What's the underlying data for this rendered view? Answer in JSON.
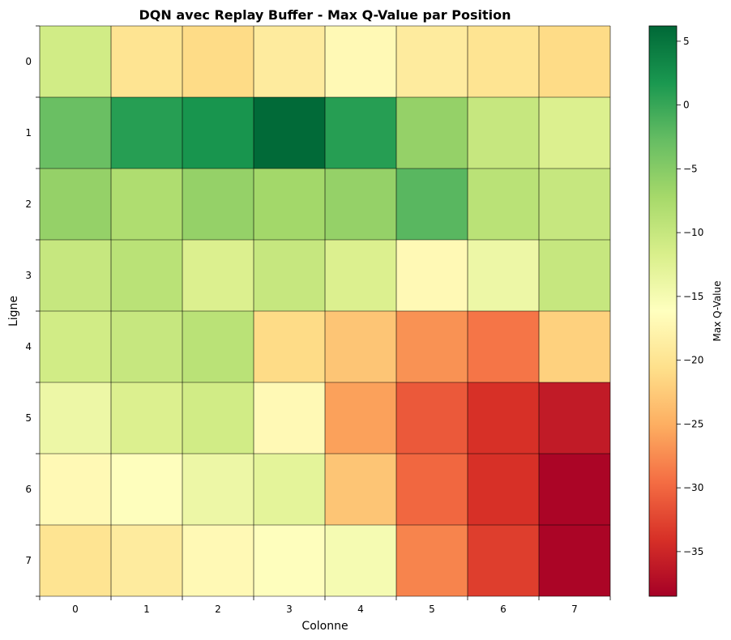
{
  "chart_data": {
    "type": "heatmap",
    "title": "DQN avec Replay Buffer - Max Q-Value par Position",
    "xlabel": "Colonne",
    "ylabel": "Ligne",
    "x_ticks": [
      "0",
      "1",
      "2",
      "3",
      "4",
      "5",
      "6",
      "7"
    ],
    "y_ticks": [
      "0",
      "1",
      "2",
      "3",
      "4",
      "5",
      "6",
      "7"
    ],
    "values": [
      [
        -11,
        -20,
        -21,
        -19,
        -17,
        -19,
        -20,
        -21
      ],
      [
        -3,
        1,
        2,
        6,
        1,
        -6,
        -10,
        -12
      ],
      [
        -6,
        -8,
        -6,
        -7,
        -6,
        -2,
        -9,
        -10
      ],
      [
        -10,
        -9,
        -12,
        -10,
        -12,
        -17,
        -14,
        -10
      ],
      [
        -11,
        -10,
        -9,
        -21,
        -23,
        -27,
        -29,
        -22
      ],
      [
        -14,
        -12,
        -11,
        -17,
        -26,
        -31,
        -34,
        -36
      ],
      [
        -17,
        -16,
        -14,
        -13,
        -23,
        -30,
        -34,
        -38
      ],
      [
        -20,
        -19,
        -17,
        -16,
        -15,
        -28,
        -33,
        -38
      ]
    ],
    "vmin": -38.5,
    "vmax": 6.2,
    "colormap": "RdYlGn",
    "grid_lines": true,
    "colorbar": {
      "label": "Max Q-Value",
      "ticks": [
        5,
        0,
        -5,
        -10,
        -15,
        -20,
        -25,
        -30,
        -35
      ],
      "tick_labels": [
        "5",
        "0",
        "−5",
        "−10",
        "−15",
        "−20",
        "−25",
        "−30",
        "−35"
      ]
    }
  }
}
